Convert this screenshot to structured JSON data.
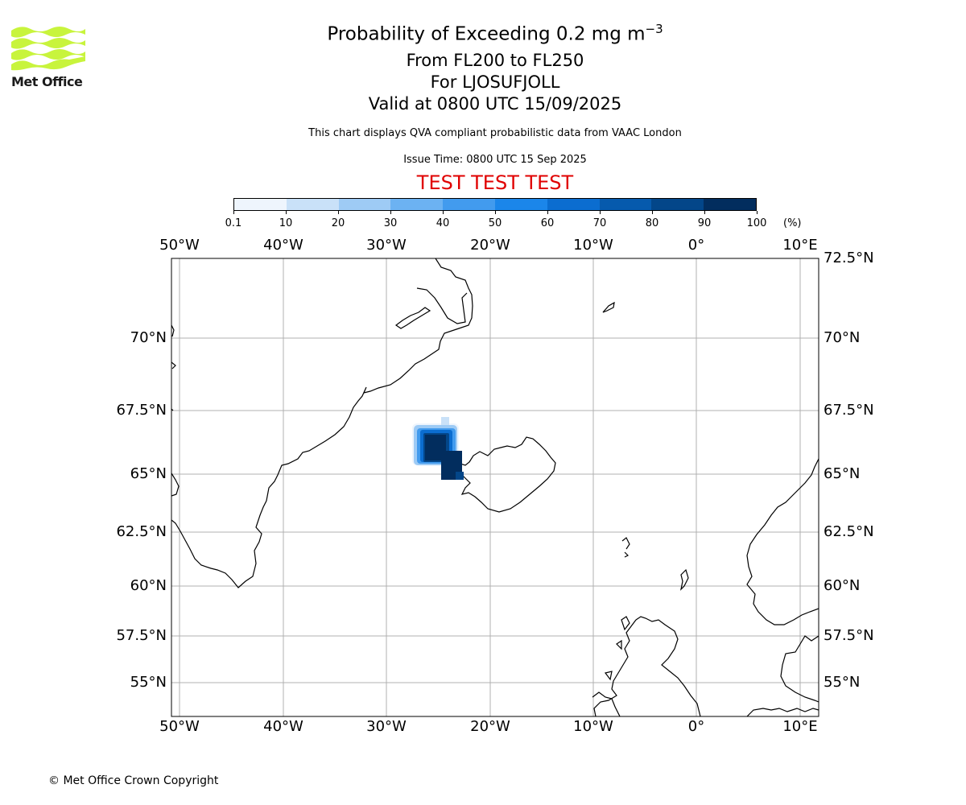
{
  "logo": {
    "name": "Met Office",
    "color": "#c8f43c"
  },
  "title": {
    "line1": "Probability of Exceeding 0.2 mg m",
    "line1_sup": "−3",
    "line2": "From FL200 to FL250",
    "line3": "For LJOSUFJOLL",
    "line4": "Valid at 0800 UTC 15/09/2025"
  },
  "subtitle": "This chart displays QVA compliant probabilistic data from VAAC London",
  "issue_time": "Issue Time: 0800 UTC 15 Sep 2025",
  "test_banner": "TEST TEST TEST",
  "colorbar": {
    "ticks": [
      "0.1",
      "10",
      "20",
      "30",
      "40",
      "50",
      "60",
      "70",
      "80",
      "90",
      "100"
    ],
    "unit": "(%)",
    "colors": [
      "#eef5fd",
      "#c9e1f8",
      "#9ecbf5",
      "#6cb2f2",
      "#429bee",
      "#1b86ea",
      "#0b6dd0",
      "#065aad",
      "#034689",
      "#022d5e"
    ]
  },
  "map": {
    "lon_labels": [
      "50°W",
      "40°W",
      "30°W",
      "20°W",
      "10°W",
      "0°",
      "10°E"
    ],
    "lat_labels": [
      "72.5°N",
      "70°N",
      "67.5°N",
      "65°N",
      "62.5°N",
      "60°N",
      "57.5°N",
      "55°N"
    ],
    "left_lat_labels": [
      "70°N",
      "67.5°N",
      "65°N",
      "62.5°N",
      "60°N",
      "57.5°N",
      "55°N"
    ],
    "plume_peak_percent": 100
  },
  "copyright": "© Met Office Crown Copyright"
}
